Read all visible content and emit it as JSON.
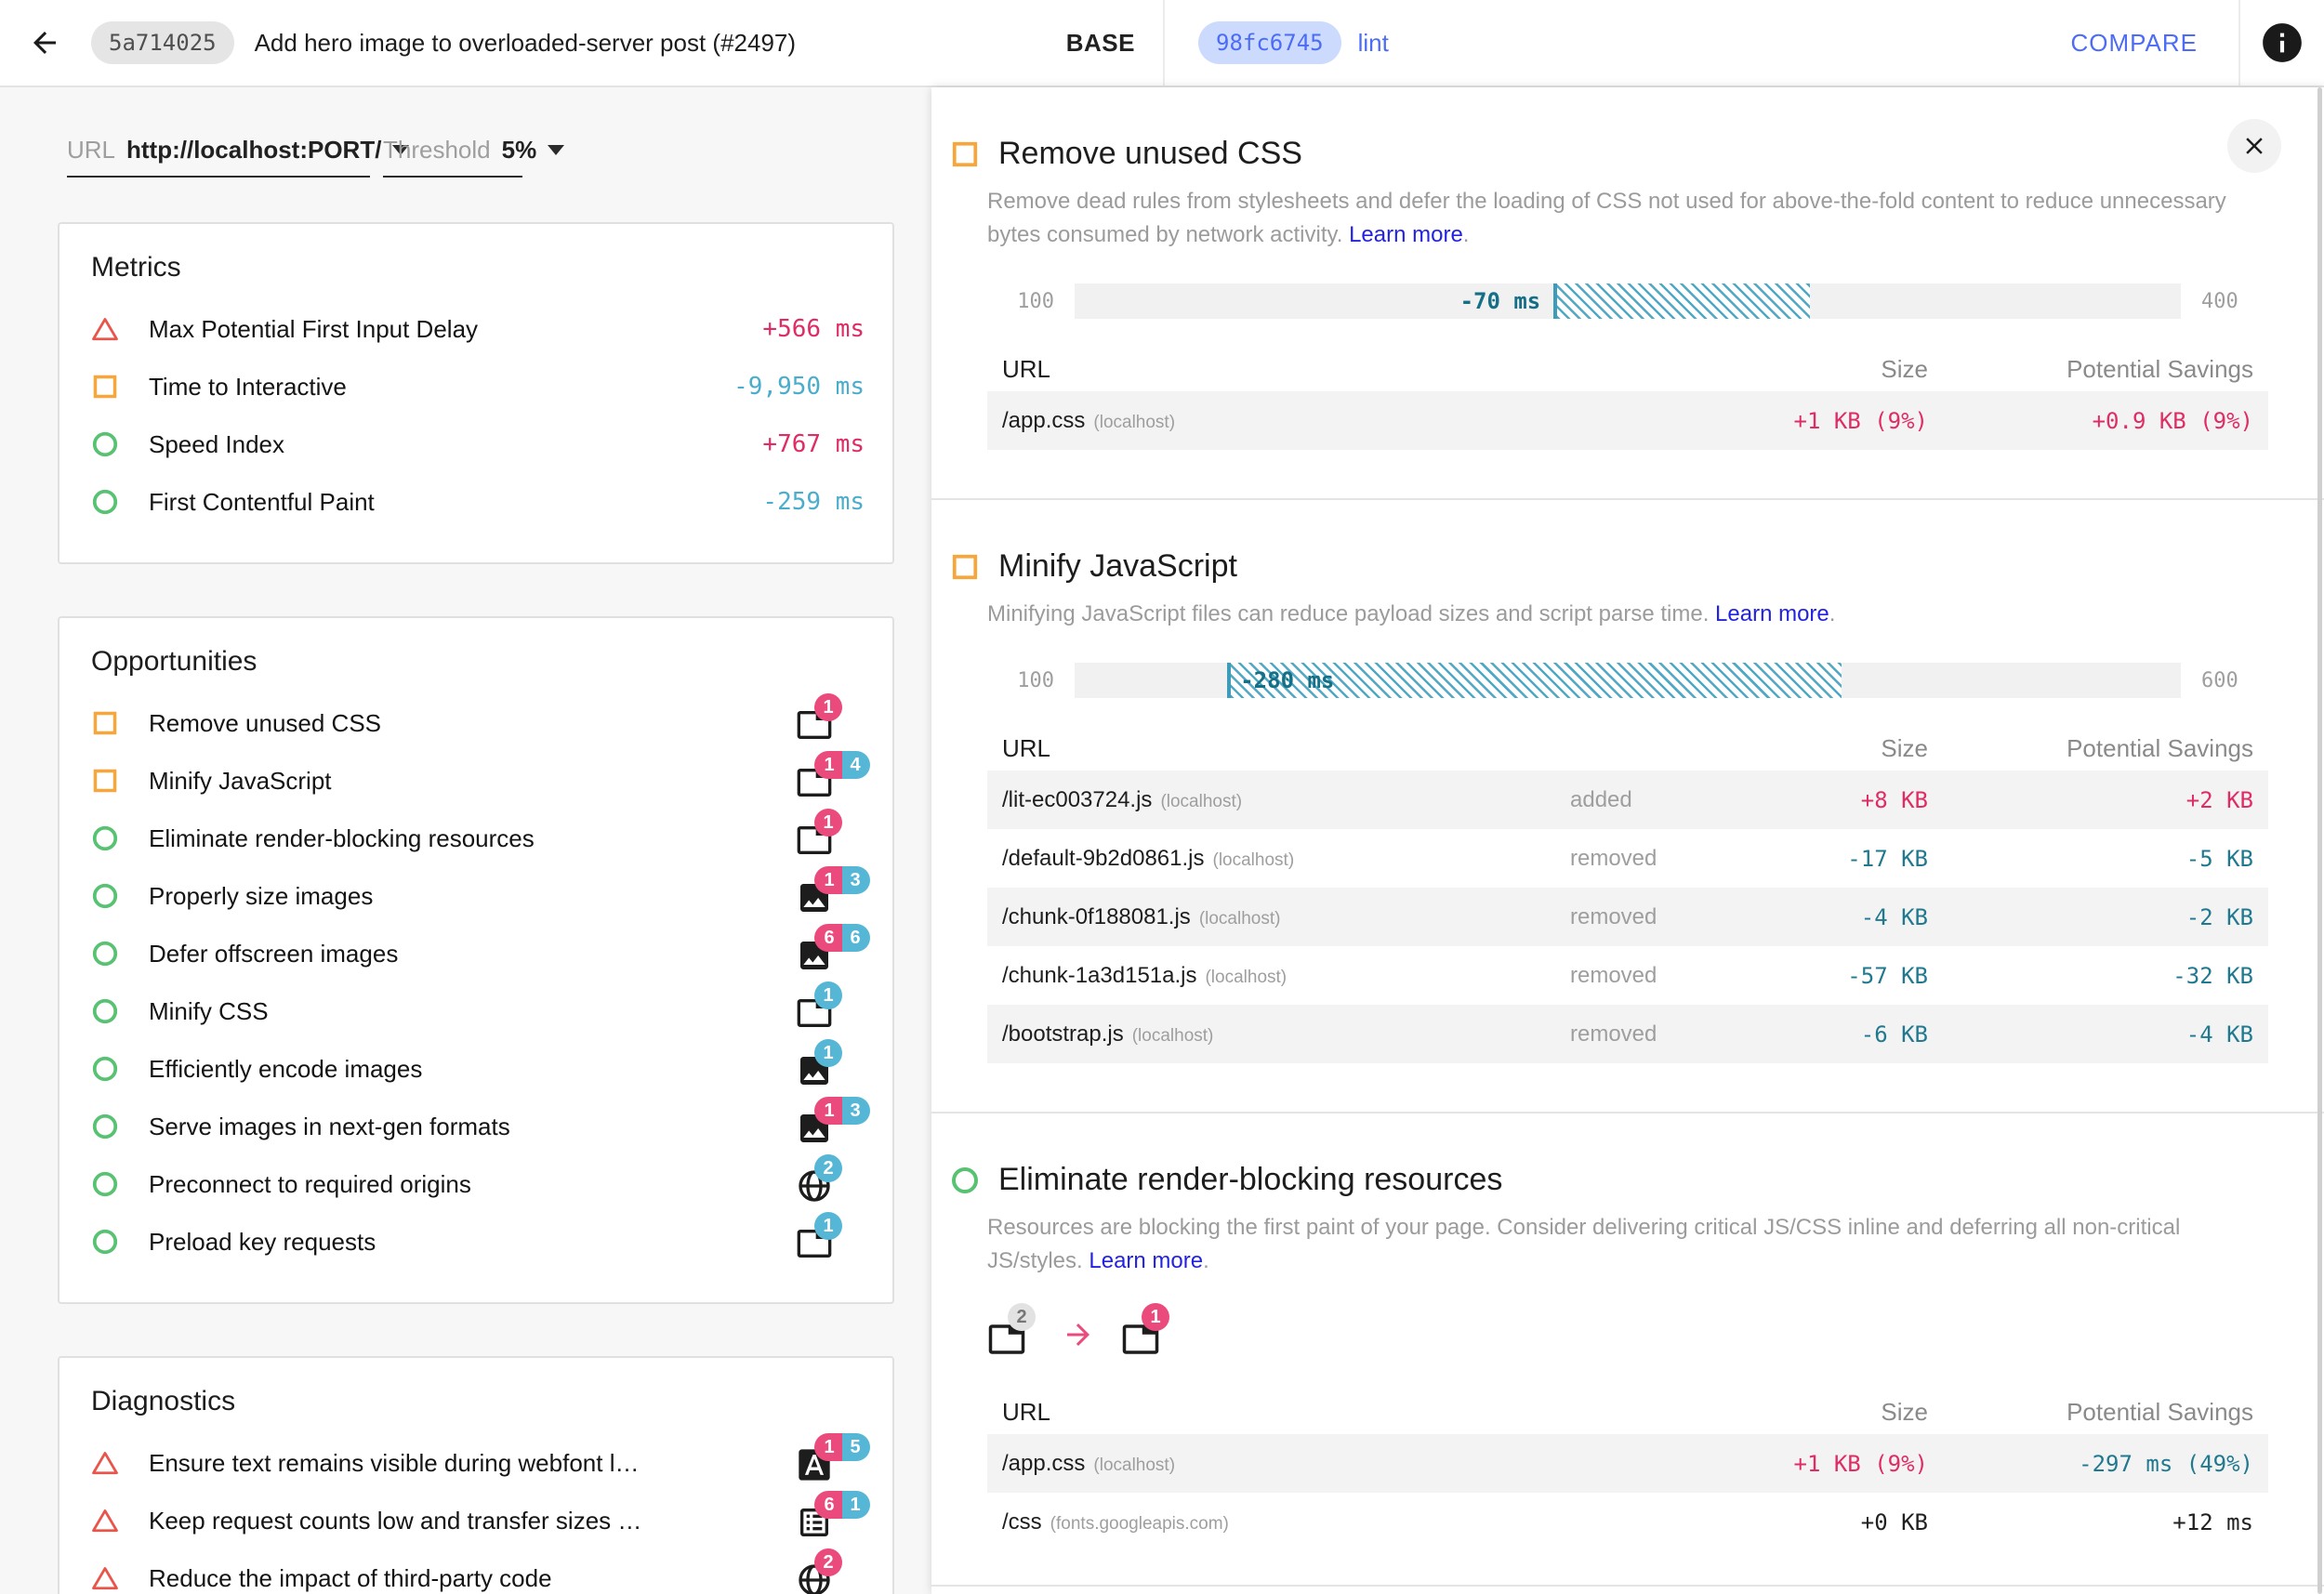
{
  "header": {
    "base": {
      "hash": "5a714025",
      "title": "Add hero image to overloaded-server post (#2497)",
      "label": "BASE"
    },
    "compare": {
      "hash": "98fc6745",
      "branch": "lint",
      "button": "COMPARE"
    }
  },
  "controls": {
    "url": {
      "label": "URL",
      "value": "http://localhost:PORT/"
    },
    "threshold": {
      "label": "Threshold",
      "value": "5%"
    }
  },
  "metrics": {
    "title": "Metrics",
    "items": [
      {
        "label": "Max Potential First Input Delay",
        "value": "+566 ms",
        "icon": "fail-triangle",
        "trend": "regression"
      },
      {
        "label": "Time to Interactive",
        "value": "-9,950 ms",
        "icon": "warn-square",
        "trend": "improvement"
      },
      {
        "label": "Speed Index",
        "value": "+767 ms",
        "icon": "pass-circle",
        "trend": "regression"
      },
      {
        "label": "First Contentful Paint",
        "value": "-259 ms",
        "icon": "pass-circle",
        "trend": "improvement"
      }
    ]
  },
  "opportunities": {
    "title": "Opportunities",
    "items": [
      {
        "label": "Remove unused CSS",
        "icon": "warn-square",
        "resource": "document",
        "badges": [
          {
            "count": "1",
            "color": "pink"
          }
        ]
      },
      {
        "label": "Minify JavaScript",
        "icon": "warn-square",
        "resource": "document",
        "badges": [
          {
            "count": "1",
            "color": "pink"
          },
          {
            "count": "4",
            "color": "blue"
          }
        ]
      },
      {
        "label": "Eliminate render-blocking resources",
        "icon": "pass-circle",
        "resource": "document",
        "badges": [
          {
            "count": "1",
            "color": "pink"
          }
        ]
      },
      {
        "label": "Properly size images",
        "icon": "pass-circle",
        "resource": "image",
        "badges": [
          {
            "count": "1",
            "color": "pink"
          },
          {
            "count": "3",
            "color": "blue"
          }
        ]
      },
      {
        "label": "Defer offscreen images",
        "icon": "pass-circle",
        "resource": "image",
        "badges": [
          {
            "count": "6",
            "color": "pink"
          },
          {
            "count": "6",
            "color": "blue"
          }
        ]
      },
      {
        "label": "Minify CSS",
        "icon": "pass-circle",
        "resource": "document",
        "badges": [
          {
            "count": "1",
            "color": "blue"
          }
        ]
      },
      {
        "label": "Efficiently encode images",
        "icon": "pass-circle",
        "resource": "image",
        "badges": [
          {
            "count": "1",
            "color": "blue"
          }
        ]
      },
      {
        "label": "Serve images in next-gen formats",
        "icon": "pass-circle",
        "resource": "image",
        "badges": [
          {
            "count": "1",
            "color": "pink"
          },
          {
            "count": "3",
            "color": "blue"
          }
        ]
      },
      {
        "label": "Preconnect to required origins",
        "icon": "pass-circle",
        "resource": "globe",
        "badges": [
          {
            "count": "2",
            "color": "blue"
          }
        ]
      },
      {
        "label": "Preload key requests",
        "icon": "pass-circle",
        "resource": "document",
        "badges": [
          {
            "count": "1",
            "color": "blue"
          }
        ]
      }
    ]
  },
  "diagnostics": {
    "title": "Diagnostics",
    "items": [
      {
        "label": "Ensure text remains visible during webfont l…",
        "icon": "fail-triangle",
        "resource": "font",
        "badges": [
          {
            "count": "1",
            "color": "pink"
          },
          {
            "count": "5",
            "color": "blue"
          }
        ]
      },
      {
        "label": "Keep request counts low and transfer sizes …",
        "icon": "fail-triangle",
        "resource": "table",
        "badges": [
          {
            "count": "6",
            "color": "pink"
          },
          {
            "count": "1",
            "color": "blue"
          }
        ]
      },
      {
        "label": "Reduce the impact of third-party code",
        "icon": "fail-triangle",
        "resource": "globe",
        "badges": [
          {
            "count": "2",
            "color": "pink"
          }
        ]
      }
    ]
  },
  "details": {
    "columns": {
      "url": "URL",
      "size": "Size",
      "savings": "Potential Savings"
    },
    "cards": [
      {
        "title": "Remove unused CSS",
        "icon": "warn-square",
        "description": "Remove dead rules from stylesheets and defer the loading of CSS not used for above-the-fold content to reduce unnecessary bytes consumed by network activity.",
        "learn_more": "Learn more",
        "learn_more_suffix": ".",
        "bar": {
          "min": "100",
          "max": "400",
          "label": "-70 ms",
          "hatch_left_pct": 43.3,
          "hatch_width_pct": 23.2,
          "label_inside": false
        },
        "rows": [
          {
            "url": "/app.css",
            "host": "(localhost)",
            "size": "+1 KB (9%)",
            "size_trend": "regression",
            "savings": "+0.9 KB (9%)",
            "savings_trend": "regression"
          }
        ]
      },
      {
        "title": "Minify JavaScript",
        "icon": "warn-square",
        "description": "Minifying JavaScript files can reduce payload sizes and script parse time.",
        "learn_more": "Learn more",
        "learn_more_suffix": ".",
        "bar": {
          "min": "100",
          "max": "600",
          "label": "-280 ms",
          "hatch_left_pct": 13.8,
          "hatch_width_pct": 55.5,
          "label_inside": true
        },
        "rows": [
          {
            "url": "/lit-ec003724.js",
            "host": "(localhost)",
            "change": "added",
            "size": "+8 KB",
            "size_trend": "regression",
            "savings": "+2 KB",
            "savings_trend": "regression"
          },
          {
            "url": "/default-9b2d0861.js",
            "host": "(localhost)",
            "change": "removed",
            "size": "-17 KB",
            "size_trend": "improvement",
            "savings": "-5 KB",
            "savings_trend": "improvement"
          },
          {
            "url": "/chunk-0f188081.js",
            "host": "(localhost)",
            "change": "removed",
            "size": "-4 KB",
            "size_trend": "improvement",
            "savings": "-2 KB",
            "savings_trend": "improvement"
          },
          {
            "url": "/chunk-1a3d151a.js",
            "host": "(localhost)",
            "change": "removed",
            "size": "-57 KB",
            "size_trend": "improvement",
            "savings": "-32 KB",
            "savings_trend": "improvement"
          },
          {
            "url": "/bootstrap.js",
            "host": "(localhost)",
            "change": "removed",
            "size": "-6 KB",
            "size_trend": "improvement",
            "savings": "-4 KB",
            "savings_trend": "improvement"
          }
        ]
      },
      {
        "title": "Eliminate render-blocking resources",
        "icon": "pass-circle",
        "description": "Resources are blocking the first paint of your page. Consider delivering critical JS/CSS inline and deferring all non-critical JS/styles.",
        "learn_more": "Learn more",
        "learn_more_suffix": ".",
        "transition": {
          "from": "2",
          "to": "1"
        },
        "rows": [
          {
            "url": "/app.css",
            "host": "(localhost)",
            "size": "+1 KB (9%)",
            "size_trend": "regression",
            "savings": "-297 ms (49%)",
            "savings_trend": "improvement"
          },
          {
            "url": "/css",
            "host": "(fonts.googleapis.com)",
            "size": "+0 KB",
            "size_trend": "neutral",
            "savings": "+12 ms",
            "savings_trend": "neutral"
          }
        ]
      }
    ]
  },
  "colors": {
    "regression_pink": "#df2c64",
    "improvement_teal": "#20798f",
    "metric_improvement_blue": "#4aadcc",
    "badge_pink": "#eb4a7d",
    "badge_blue": "#56b6d6",
    "fail_red": "#e8554b",
    "warn_orange": "#f7a63c",
    "pass_green": "#57c271",
    "link_blue": "#2323df",
    "header_blue": "#4c6cf5",
    "hatch_teal": "#4fa9c6"
  }
}
